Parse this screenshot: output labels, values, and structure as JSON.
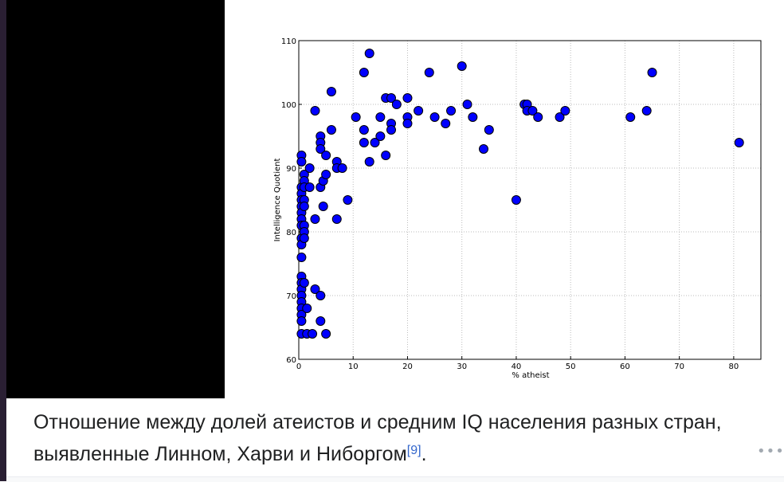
{
  "chart_data": {
    "type": "scatter",
    "title": "",
    "xlabel": "% atheist",
    "ylabel": "Intelligence Quotient",
    "xlim": [
      0,
      85
    ],
    "ylim": [
      60,
      110
    ],
    "xticks": [
      0,
      10,
      20,
      30,
      40,
      50,
      60,
      70,
      80
    ],
    "yticks": [
      60,
      70,
      80,
      90,
      100,
      110
    ],
    "grid": true,
    "marker_color": "#0000ff",
    "points": [
      [
        0.5,
        92
      ],
      [
        0.5,
        91
      ],
      [
        0.5,
        87
      ],
      [
        0.5,
        86
      ],
      [
        0.5,
        85
      ],
      [
        0.5,
        84
      ],
      [
        0.5,
        83
      ],
      [
        0.5,
        82
      ],
      [
        0.5,
        81
      ],
      [
        0.5,
        79
      ],
      [
        0.5,
        78
      ],
      [
        0.5,
        76
      ],
      [
        0.5,
        73
      ],
      [
        0.5,
        72
      ],
      [
        0.5,
        71
      ],
      [
        0.5,
        70
      ],
      [
        0.5,
        69
      ],
      [
        0.5,
        68
      ],
      [
        0.5,
        67
      ],
      [
        0.5,
        66
      ],
      [
        0.5,
        64
      ],
      [
        1,
        89
      ],
      [
        1,
        88
      ],
      [
        1,
        87
      ],
      [
        1,
        85
      ],
      [
        1,
        84
      ],
      [
        1,
        81
      ],
      [
        1,
        80
      ],
      [
        1,
        79
      ],
      [
        1,
        72
      ],
      [
        1.5,
        68
      ],
      [
        1.5,
        64
      ],
      [
        2,
        90
      ],
      [
        2,
        87
      ],
      [
        2.5,
        64
      ],
      [
        3,
        99
      ],
      [
        3,
        82
      ],
      [
        3,
        71
      ],
      [
        4,
        95
      ],
      [
        4,
        94
      ],
      [
        4,
        93
      ],
      [
        4,
        87
      ],
      [
        4,
        70
      ],
      [
        4,
        66
      ],
      [
        4.5,
        88
      ],
      [
        4.5,
        84
      ],
      [
        5,
        92
      ],
      [
        5,
        89
      ],
      [
        5,
        64
      ],
      [
        6,
        102
      ],
      [
        6,
        96
      ],
      [
        7,
        91
      ],
      [
        7,
        90
      ],
      [
        7,
        82
      ],
      [
        8,
        90
      ],
      [
        9,
        85
      ],
      [
        10.5,
        98
      ],
      [
        12,
        105
      ],
      [
        12,
        96
      ],
      [
        12,
        94
      ],
      [
        13,
        108
      ],
      [
        13,
        91
      ],
      [
        14,
        94
      ],
      [
        15,
        98
      ],
      [
        15,
        95
      ],
      [
        16,
        101
      ],
      [
        16,
        92
      ],
      [
        17,
        101
      ],
      [
        17,
        97
      ],
      [
        17,
        96
      ],
      [
        18,
        100
      ],
      [
        20,
        101
      ],
      [
        20,
        98
      ],
      [
        20,
        97
      ],
      [
        22,
        99
      ],
      [
        24,
        105
      ],
      [
        25,
        98
      ],
      [
        27,
        97
      ],
      [
        28,
        99
      ],
      [
        30,
        106
      ],
      [
        31,
        100
      ],
      [
        32,
        98
      ],
      [
        34,
        93
      ],
      [
        35,
        96
      ],
      [
        40,
        85
      ],
      [
        41.5,
        100
      ],
      [
        42,
        100
      ],
      [
        42,
        99
      ],
      [
        43,
        99
      ],
      [
        44,
        98
      ],
      [
        48,
        98
      ],
      [
        49,
        99
      ],
      [
        61,
        98
      ],
      [
        64,
        99
      ],
      [
        65,
        105
      ],
      [
        81,
        94
      ]
    ]
  },
  "caption": {
    "text": "Отношение между долей атеистов и средним IQ населения разных стран, выявленные Линном, Харви и Ниборгом",
    "ref": "[9]",
    "end": "."
  },
  "more_icon": "ellipsis-icon"
}
